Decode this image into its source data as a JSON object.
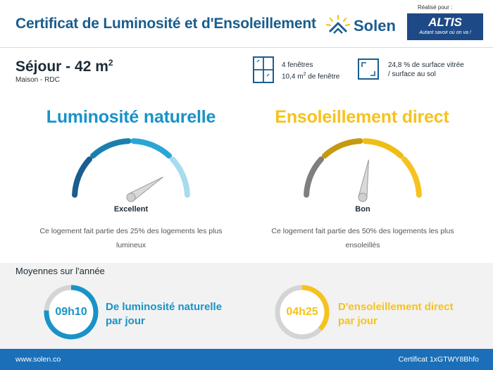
{
  "header": {
    "title": "Certificat de Luminosité et d'Ensoleillement",
    "brand": "Solen",
    "partner_label": "Réalisé pour :",
    "partner_name": "ALTIS",
    "partner_tagline": "Autant savoir où on va !"
  },
  "room": {
    "title": "Séjour - 42 m",
    "title_sup": "2",
    "subtitle": "Maison - RDC",
    "windows_line1": "4 fenêtres",
    "windows_line2_prefix": "10,4 m",
    "windows_line2_sup": "2",
    "windows_line2_suffix": " de fenêtre",
    "glazed_line1": "24,8 % de surface vitrée",
    "glazed_line2": "/ surface au sol"
  },
  "luminosity": {
    "title": "Luminosité naturelle",
    "rating": "Excellent",
    "description": "Ce logement fait partie des 25% des logements les plus lumineux",
    "gauge_level": 0.82,
    "colors": [
      "#1a5d8f",
      "#1a7fb0",
      "#2aa6d6",
      "#a7dcef"
    ]
  },
  "sunlight": {
    "title": "Ensoleillement direct",
    "rating": "Bon",
    "description": "Ce logement fait partie des 50% des logements les plus ensoleillés",
    "gauge_level": 0.55,
    "colors": [
      "#7f7f7f",
      "#c39a10",
      "#f1bc15",
      "#f6c21f"
    ]
  },
  "averages": {
    "title": "Moyennes sur l'année",
    "luminosity_value": "09h10",
    "luminosity_label_1": "De luminosité naturelle",
    "luminosity_label_2": "par jour",
    "luminosity_fill": 0.76,
    "sunlight_value": "04h25",
    "sunlight_label_1": "D'ensoleillement direct",
    "sunlight_label_2": "par jour",
    "sunlight_fill": 0.37
  },
  "footer": {
    "website": "www.solen.co",
    "certificate": "Certificat 1xGTWY8Bhfo"
  },
  "palette": {
    "blue": "#1893c7",
    "yellow": "#f6c21f",
    "footer": "#1b6fb8"
  }
}
